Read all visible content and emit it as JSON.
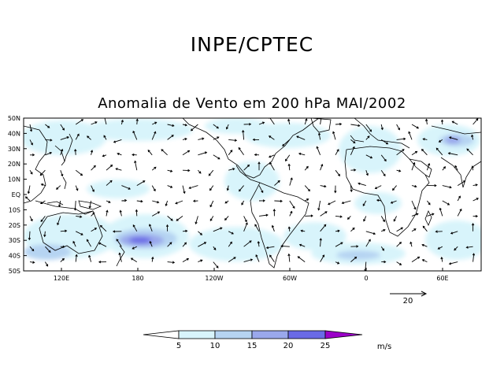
{
  "header": {
    "organization": "INPE/CPTEC",
    "title": "Anomalia de Vento em 200 hPa MAI/2002"
  },
  "map": {
    "lat_labels": [
      "50N",
      "40N",
      "30N",
      "20N",
      "10N",
      "EQ",
      "10S",
      "20S",
      "30S",
      "40S",
      "50S"
    ],
    "lon_labels": [
      "120E",
      "180",
      "120W",
      "60W",
      "0",
      "60E"
    ],
    "reference_vector": {
      "label": "20",
      "value": 20
    }
  },
  "colorbar": {
    "ticks": [
      "5",
      "10",
      "15",
      "20",
      "25"
    ],
    "unit": "m/s",
    "colors": [
      "#ffffff",
      "#d8f4fb",
      "#b6d4f2",
      "#9aa8ec",
      "#6a6ae6",
      "#9b00c8"
    ]
  }
}
